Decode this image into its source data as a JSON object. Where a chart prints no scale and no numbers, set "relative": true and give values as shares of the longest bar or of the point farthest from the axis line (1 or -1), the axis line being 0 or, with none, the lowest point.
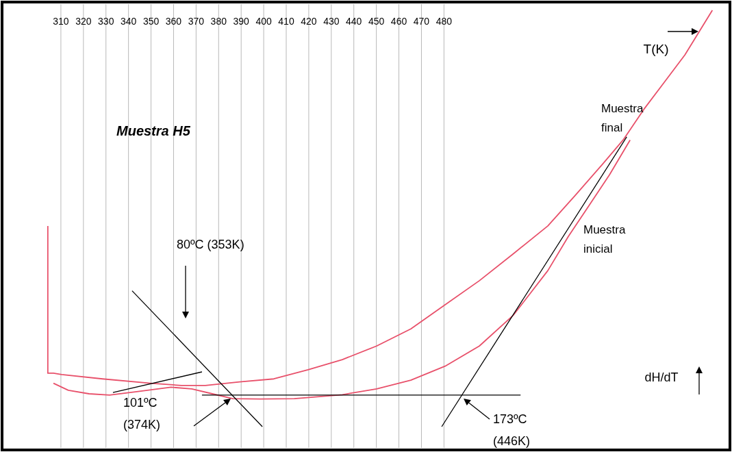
{
  "chart_data": {
    "type": "line",
    "title": "Muestra H5",
    "xlabel": "T(K)",
    "ylabel": "dH/dT",
    "relative": true,
    "grid": "x",
    "legend": false,
    "xlim": [
      284.8,
      606
    ],
    "xticks": [
      310,
      320,
      330,
      340,
      350,
      360,
      370,
      380,
      390,
      400,
      410,
      420,
      430,
      440,
      450,
      460,
      470,
      480
    ],
    "series": [
      {
        "name": "Muestra final",
        "color": "#e8506a",
        "x": [
          304.2,
          304.2,
          306.7,
          310.3,
          328.5,
          349.8,
          363.5,
          374.1,
          389.3,
          404.5,
          419.7,
          434.9,
          450.1,
          465.3,
          480.5,
          495.7,
          510.9,
          526.1,
          538.3,
          550.4,
          559.5,
          568.7,
          577.8,
          586.9,
          599.1
        ],
        "values": [
          0.508,
          0.172,
          0.172,
          0.169,
          0.159,
          0.149,
          0.144,
          0.144,
          0.152,
          0.159,
          0.18,
          0.203,
          0.234,
          0.273,
          0.328,
          0.383,
          0.445,
          0.508,
          0.578,
          0.649,
          0.704,
          0.774,
          0.836,
          0.898,
          1.0
        ]
      },
      {
        "name": "Muestra inicial",
        "color": "#e8506a",
        "x": [
          306.7,
          313.3,
          322.5,
          331.6,
          343.7,
          358.9,
          368.1,
          377.2,
          386.3,
          398.4,
          413.6,
          434.9,
          450.1,
          465.3,
          480.5,
          495.7,
          510.9,
          526.1,
          535.2,
          544.3,
          553.5,
          562.6
        ],
        "values": [
          0.149,
          0.133,
          0.125,
          0.122,
          0.13,
          0.14,
          0.136,
          0.125,
          0.114,
          0.113,
          0.114,
          0.123,
          0.136,
          0.156,
          0.188,
          0.234,
          0.305,
          0.406,
          0.484,
          0.554,
          0.625,
          0.704
        ]
      },
      {
        "color": "#000000",
        "x": [
          333.1,
          372.6
        ],
        "values": [
          0.128,
          0.175
        ]
      },
      {
        "color": "#000000",
        "x": [
          341.6,
          399.4
        ],
        "values": [
          0.36,
          0.05
        ]
      },
      {
        "color": "#000000",
        "x": [
          372.6,
          514.0
        ],
        "values": [
          0.122,
          0.122
        ]
      },
      {
        "color": "#000000",
        "x": [
          479.0,
          561.1
        ],
        "values": [
          0.05,
          0.711
        ]
      }
    ],
    "annotations": [
      "80ºC (353K)",
      "101ºC\n(374K)",
      "173ºC\n(446K)"
    ]
  }
}
